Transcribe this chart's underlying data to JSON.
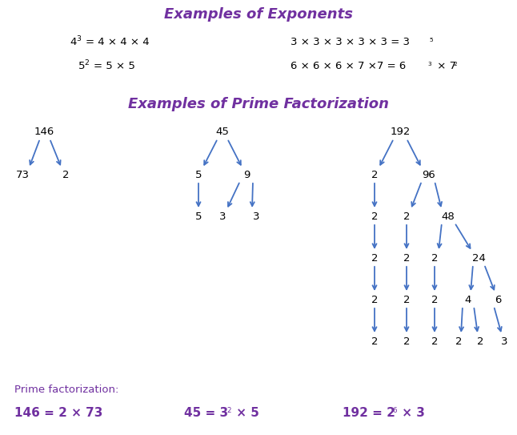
{
  "title1": "Examples of Exponents",
  "title2": "Examples of Prime Factorization",
  "purple": "#7030A0",
  "arrow_color": "#4472C4",
  "black": "#000000",
  "white": "#ffffff",
  "fs_title": 13,
  "fs_body": 9.5,
  "fs_pf": 11
}
